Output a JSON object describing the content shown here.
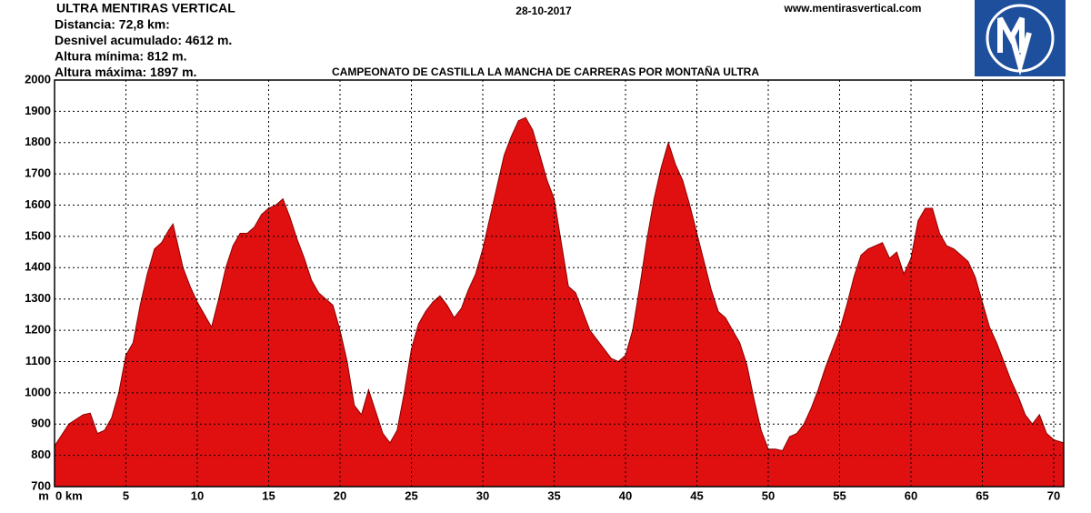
{
  "chart_data": {
    "type": "area",
    "title": "CAMPEONATO DE CASTILLA LA MANCHA DE CARRERAS POR MONTAÑA ULTRA",
    "race_name": "ULTRA MENTIRAS VERTICAL",
    "date": "28-10-2017",
    "website": "www.mentirasvertical.com",
    "info": [
      "Distancia: 72,8 km:",
      "Desnivel acumulado: 4612 m.",
      "Altura mínima: 812 m.",
      "Altura máxima: 1897 m."
    ],
    "y_label": "m",
    "color": "#e01010",
    "xlim": [
      0,
      70.7
    ],
    "ylim": [
      700,
      2000
    ],
    "xticks": [
      {
        "value": 0,
        "label": "0 km"
      },
      5,
      10,
      15,
      20,
      25,
      30,
      35,
      40,
      45,
      50,
      55,
      60,
      65,
      70
    ],
    "yticks": [
      700,
      800,
      900,
      1000,
      1100,
      1200,
      1300,
      1400,
      1500,
      1600,
      1700,
      1800,
      1900,
      2000
    ],
    "grid": true,
    "x": [
      0,
      1,
      2,
      2.5,
      3,
      3.5,
      4,
      4.5,
      5,
      5.5,
      6,
      6.5,
      7,
      7.5,
      8,
      8.3,
      8.5,
      9,
      9.5,
      10,
      10.5,
      11,
      11.5,
      12,
      12.5,
      13,
      13.5,
      14,
      14.5,
      15,
      15.5,
      16,
      16.5,
      17,
      17.5,
      18,
      18.5,
      19,
      19.5,
      20,
      20.5,
      21,
      21.5,
      22,
      22.5,
      23,
      23.5,
      24,
      24.5,
      25,
      25.5,
      26,
      26.5,
      27,
      27.5,
      28,
      28.5,
      29,
      29.5,
      30,
      30.5,
      31,
      31.5,
      32,
      32.5,
      33,
      33.5,
      34,
      34.5,
      35,
      35.5,
      36,
      36.5,
      37,
      37.5,
      38,
      38.5,
      39,
      39.5,
      40,
      40.5,
      41,
      41.5,
      42,
      42.5,
      43,
      43.5,
      44,
      44.5,
      45,
      45.5,
      46,
      46.5,
      47,
      47.5,
      48,
      48.5,
      49,
      49.5,
      50,
      50.5,
      51,
      51.5,
      52,
      52.5,
      53,
      53.5,
      54,
      54.5,
      55,
      55.5,
      56,
      56.5,
      57,
      57.5,
      58,
      58.5,
      59,
      59.5,
      60,
      60.5,
      61,
      61.5,
      62,
      62.5,
      63,
      63.5,
      64,
      64.5,
      65,
      65.5,
      66,
      66.5,
      67,
      67.5,
      68,
      68.5,
      69,
      69.5,
      70,
      70.7
    ],
    "values": [
      830,
      900,
      930,
      935,
      870,
      880,
      920,
      1000,
      1120,
      1160,
      1280,
      1380,
      1460,
      1480,
      1520,
      1540,
      1500,
      1400,
      1340,
      1290,
      1250,
      1210,
      1300,
      1400,
      1470,
      1510,
      1510,
      1530,
      1570,
      1590,
      1600,
      1620,
      1560,
      1490,
      1430,
      1360,
      1320,
      1300,
      1280,
      1200,
      1100,
      960,
      930,
      1010,
      940,
      870,
      840,
      880,
      1000,
      1140,
      1220,
      1260,
      1290,
      1310,
      1280,
      1240,
      1270,
      1330,
      1380,
      1460,
      1560,
      1660,
      1760,
      1820,
      1870,
      1880,
      1840,
      1760,
      1680,
      1620,
      1480,
      1340,
      1320,
      1260,
      1200,
      1170,
      1140,
      1110,
      1100,
      1120,
      1200,
      1340,
      1490,
      1620,
      1720,
      1800,
      1730,
      1680,
      1600,
      1510,
      1420,
      1330,
      1260,
      1240,
      1200,
      1160,
      1090,
      980,
      880,
      820,
      820,
      815,
      860,
      870,
      900,
      950,
      1010,
      1080,
      1140,
      1200,
      1280,
      1370,
      1440,
      1460,
      1470,
      1480,
      1430,
      1450,
      1380,
      1430,
      1550,
      1590,
      1590,
      1510,
      1470,
      1460,
      1440,
      1420,
      1370,
      1290,
      1210,
      1160,
      1100,
      1040,
      990,
      930,
      900,
      930,
      870,
      850,
      840
    ]
  }
}
